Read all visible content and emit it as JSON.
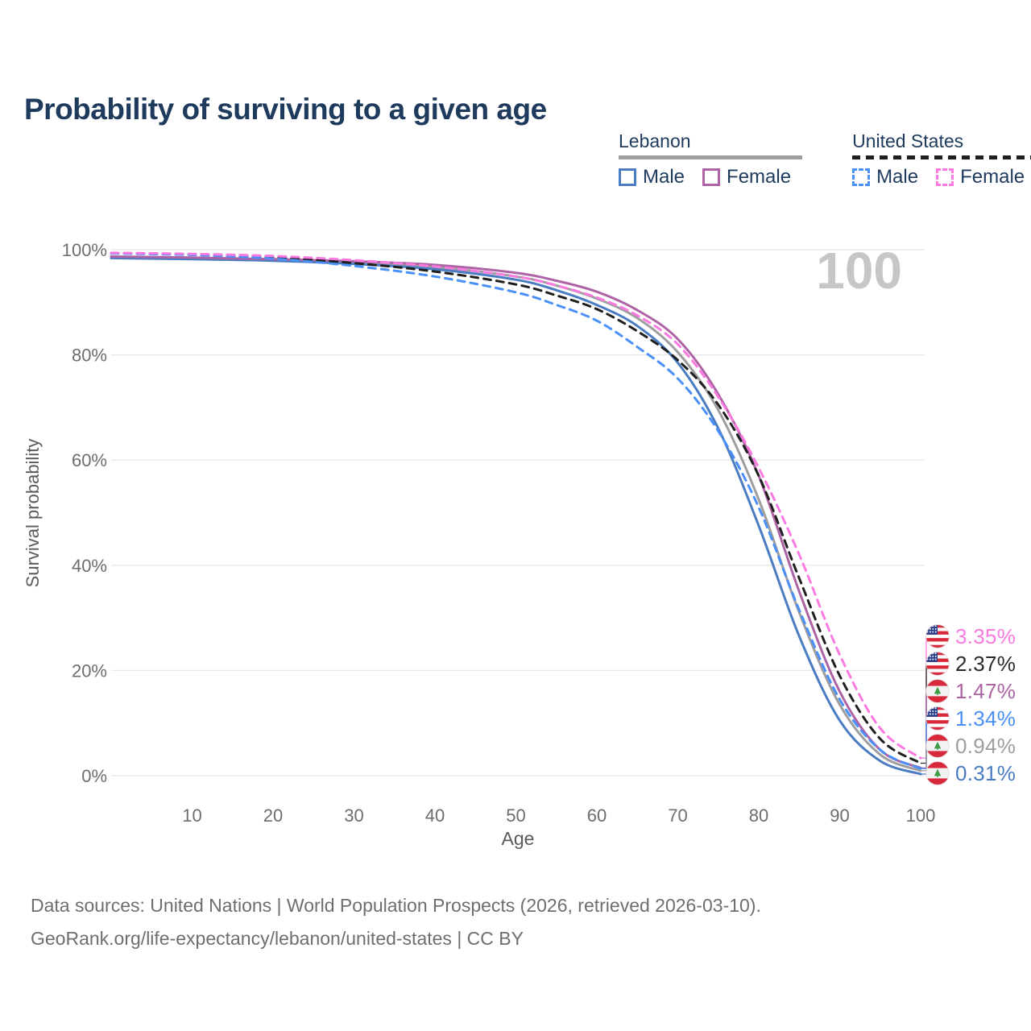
{
  "title": "Probability of surviving to a given age",
  "colors": {
    "title_text": "#1e3a5c",
    "lebanon_total": "#9e9e9e",
    "lebanon_male": "#4a7cc2",
    "lebanon_female": "#ae63a5",
    "us_total": "#1f1f1f",
    "us_male": "#4a90f8",
    "us_female": "#fb7ae1",
    "gridline": "#e8e8e8",
    "tick_text": "#6d6d6d",
    "axis_title_text": "#5a5a5a",
    "watermark_text": "#c6c6c6",
    "footer_text": "#6e6e6e",
    "flag_red": "#d8293c",
    "flag_blue": "#2b3f8c",
    "flag_green": "#3c9c47"
  },
  "legend": {
    "lebanon": {
      "title": "Lebanon",
      "male": "Male",
      "female": "Female"
    },
    "united_states": {
      "title": "United States",
      "male": "Male",
      "female": "Female"
    }
  },
  "chart_data": {
    "type": "line",
    "title": "Probability of surviving to a given age",
    "xlabel": "Age",
    "ylabel": "Survival probability",
    "xlim": [
      0,
      100
    ],
    "ylim": [
      0,
      100
    ],
    "grid": "horizontal",
    "legend_position": "top-right",
    "watermark": "100",
    "x_ticks": [
      10,
      20,
      30,
      40,
      50,
      60,
      70,
      80,
      90,
      100
    ],
    "y_ticks": [
      0,
      20,
      40,
      60,
      80,
      100
    ],
    "y_tick_labels": [
      "0%",
      "20%",
      "40%",
      "60%",
      "80%",
      "100%"
    ],
    "x": [
      0,
      10,
      20,
      30,
      40,
      50,
      55,
      60,
      65,
      70,
      75,
      80,
      85,
      90,
      95,
      100
    ],
    "series": [
      {
        "name": "Lebanon Both sexes",
        "country": "Lebanon",
        "sex": "both",
        "style": "solid",
        "color": "#9e9e9e",
        "values": [
          98.6,
          98.3,
          98.0,
          97.5,
          96.7,
          94.9,
          93.2,
          90.7,
          87.0,
          80.5,
          69.5,
          52.5,
          31.0,
          13.5,
          4.0,
          0.94
        ]
      },
      {
        "name": "Lebanon Male",
        "country": "Lebanon",
        "sex": "male",
        "style": "solid",
        "color": "#4a7cc2",
        "values": [
          98.4,
          98.2,
          97.9,
          97.3,
          96.3,
          94.3,
          92.3,
          89.5,
          85.5,
          78.5,
          66.0,
          47.5,
          26.5,
          10.5,
          2.8,
          0.31
        ]
      },
      {
        "name": "Lebanon Female",
        "country": "Lebanon",
        "sex": "female",
        "style": "solid",
        "color": "#ae63a5",
        "values": [
          98.7,
          98.5,
          98.2,
          97.8,
          97.1,
          95.6,
          94.1,
          92.0,
          88.5,
          83.0,
          72.5,
          57.0,
          35.0,
          16.0,
          4.9,
          1.47
        ]
      },
      {
        "name": "United States Both sexes",
        "country": "United States",
        "sex": "both",
        "style": "dashed",
        "color": "#1f1f1f",
        "values": [
          99.35,
          99.1,
          98.55,
          97.45,
          95.85,
          93.4,
          91.3,
          88.7,
          84.5,
          79.0,
          70.5,
          57.0,
          37.5,
          19.0,
          7.0,
          2.37
        ]
      },
      {
        "name": "United States Male",
        "country": "United States",
        "sex": "male",
        "style": "dashed",
        "color": "#4a90f8",
        "values": [
          99.3,
          99.0,
          98.3,
          96.9,
          94.9,
          91.9,
          89.5,
          86.5,
          81.5,
          75.5,
          65.5,
          51.0,
          31.5,
          14.5,
          4.9,
          1.34
        ]
      },
      {
        "name": "United States Female",
        "country": "United States",
        "sex": "female",
        "style": "dashed",
        "color": "#fb7ae1",
        "values": [
          99.4,
          99.2,
          98.8,
          98.0,
          96.8,
          94.9,
          93.2,
          90.9,
          87.5,
          82.0,
          72.0,
          58.5,
          42.0,
          23.0,
          9.0,
          3.35
        ]
      }
    ],
    "end_labels": [
      {
        "series": "United States Female",
        "flag": "us",
        "label": "3.35%",
        "value": 3.35,
        "color": "#fb7ae1"
      },
      {
        "series": "United States Both sexes",
        "flag": "us",
        "label": "2.37%",
        "value": 2.37,
        "color": "#2b2b2b"
      },
      {
        "series": "Lebanon Female",
        "flag": "lb",
        "label": "1.47%",
        "value": 1.47,
        "color": "#ae63a5"
      },
      {
        "series": "United States Male",
        "flag": "us",
        "label": "1.34%",
        "value": 1.34,
        "color": "#4a90f8"
      },
      {
        "series": "Lebanon Both sexes",
        "flag": "lb",
        "label": "0.94%",
        "value": 0.94,
        "color": "#9e9e9e"
      },
      {
        "series": "Lebanon Male",
        "flag": "lb",
        "label": "0.31%",
        "value": 0.31,
        "color": "#4a7cc2"
      }
    ]
  },
  "footer": {
    "line1": "Data sources: United Nations | World Population Prospects (2026, retrieved 2026-03-10).",
    "line2": "GeoRank.org/life-expectancy/lebanon/united-states | CC BY"
  }
}
